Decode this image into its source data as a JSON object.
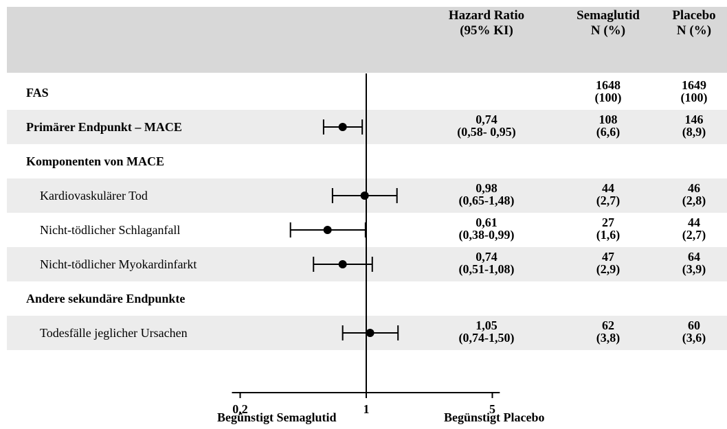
{
  "header": {
    "col_hr_line1": "Hazard Ratio",
    "col_hr_line2": "(95% KI)",
    "col_sema_line1": "Semaglutid",
    "col_sema_line2": "N (%)",
    "col_placebo_line1": "Placebo",
    "col_placebo_line2": "N (%)"
  },
  "rows": [
    {
      "label": "FAS",
      "bold": true,
      "shaded": false,
      "hr": "",
      "ci": "",
      "sema_n": "1648",
      "sema_pct": "(100)",
      "placebo_n": "1649",
      "placebo_pct": "(100)"
    },
    {
      "label": "Primärer Endpunkt – MACE",
      "bold": true,
      "shaded": true,
      "hr": "0,74",
      "ci": "(0,58- 0,95)",
      "sema_n": "108",
      "sema_pct": "(6,6)",
      "placebo_n": "146",
      "placebo_pct": "(8,9)"
    },
    {
      "label": "Komponenten von MACE",
      "bold": true,
      "shaded": false,
      "hr": "",
      "ci": "",
      "sema_n": "",
      "sema_pct": "",
      "placebo_n": "",
      "placebo_pct": ""
    },
    {
      "label": "Kardiovaskulärer Tod",
      "bold": false,
      "shaded": true,
      "hr": "0,98",
      "ci": "(0,65-1,48)",
      "sema_n": "44",
      "sema_pct": "(2,7)",
      "placebo_n": "46",
      "placebo_pct": "(2,8)"
    },
    {
      "label": "Nicht-tödlicher Schlaganfall",
      "bold": false,
      "shaded": false,
      "hr": "0,61",
      "ci": "(0,38-0,99)",
      "sema_n": "27",
      "sema_pct": "(1,6)",
      "placebo_n": "44",
      "placebo_pct": "(2,7)"
    },
    {
      "label": "Nicht-tödlicher Myokardinfarkt",
      "bold": false,
      "shaded": true,
      "hr": "0,74",
      "ci": "(0,51-1,08)",
      "sema_n": "47",
      "sema_pct": "(2,9)",
      "placebo_n": "64",
      "placebo_pct": "(3,9)"
    },
    {
      "label": "Andere sekundäre Endpunkte",
      "bold": true,
      "shaded": false,
      "hr": "",
      "ci": "",
      "sema_n": "",
      "sema_pct": "",
      "placebo_n": "",
      "placebo_pct": ""
    },
    {
      "label": "Todesfälle jeglicher Ursachen",
      "bold": false,
      "shaded": true,
      "hr": "1,05",
      "ci": "(0,74-1,50)",
      "sema_n": "62",
      "sema_pct": "(3,8)",
      "placebo_n": "60",
      "placebo_pct": "(3,6)"
    }
  ],
  "axis": {
    "ticks": [
      "0,2",
      "1",
      "5"
    ],
    "favors_left": "Begünstigt Semaglutid",
    "favors_right": "Begünstigt Placebo"
  },
  "chart_data": {
    "type": "forest",
    "scale": "log",
    "xlim": [
      0.18,
      5.5
    ],
    "reference_line": 1,
    "ticks": [
      0.2,
      1,
      5
    ],
    "points": [
      {
        "label": "Primärer Endpunkt – MACE",
        "hr": 0.74,
        "lo": 0.58,
        "hi": 0.95
      },
      {
        "label": "Kardiovaskulärer Tod",
        "hr": 0.98,
        "lo": 0.65,
        "hi": 1.48
      },
      {
        "label": "Nicht-tödlicher Schlaganfall",
        "hr": 0.61,
        "lo": 0.38,
        "hi": 0.99
      },
      {
        "label": "Nicht-tödlicher Myokardinfarkt",
        "hr": 0.74,
        "lo": 0.51,
        "hi": 1.08
      },
      {
        "label": "Todesfälle jeglicher Ursachen",
        "hr": 1.05,
        "lo": 0.74,
        "hi": 1.5
      }
    ]
  }
}
